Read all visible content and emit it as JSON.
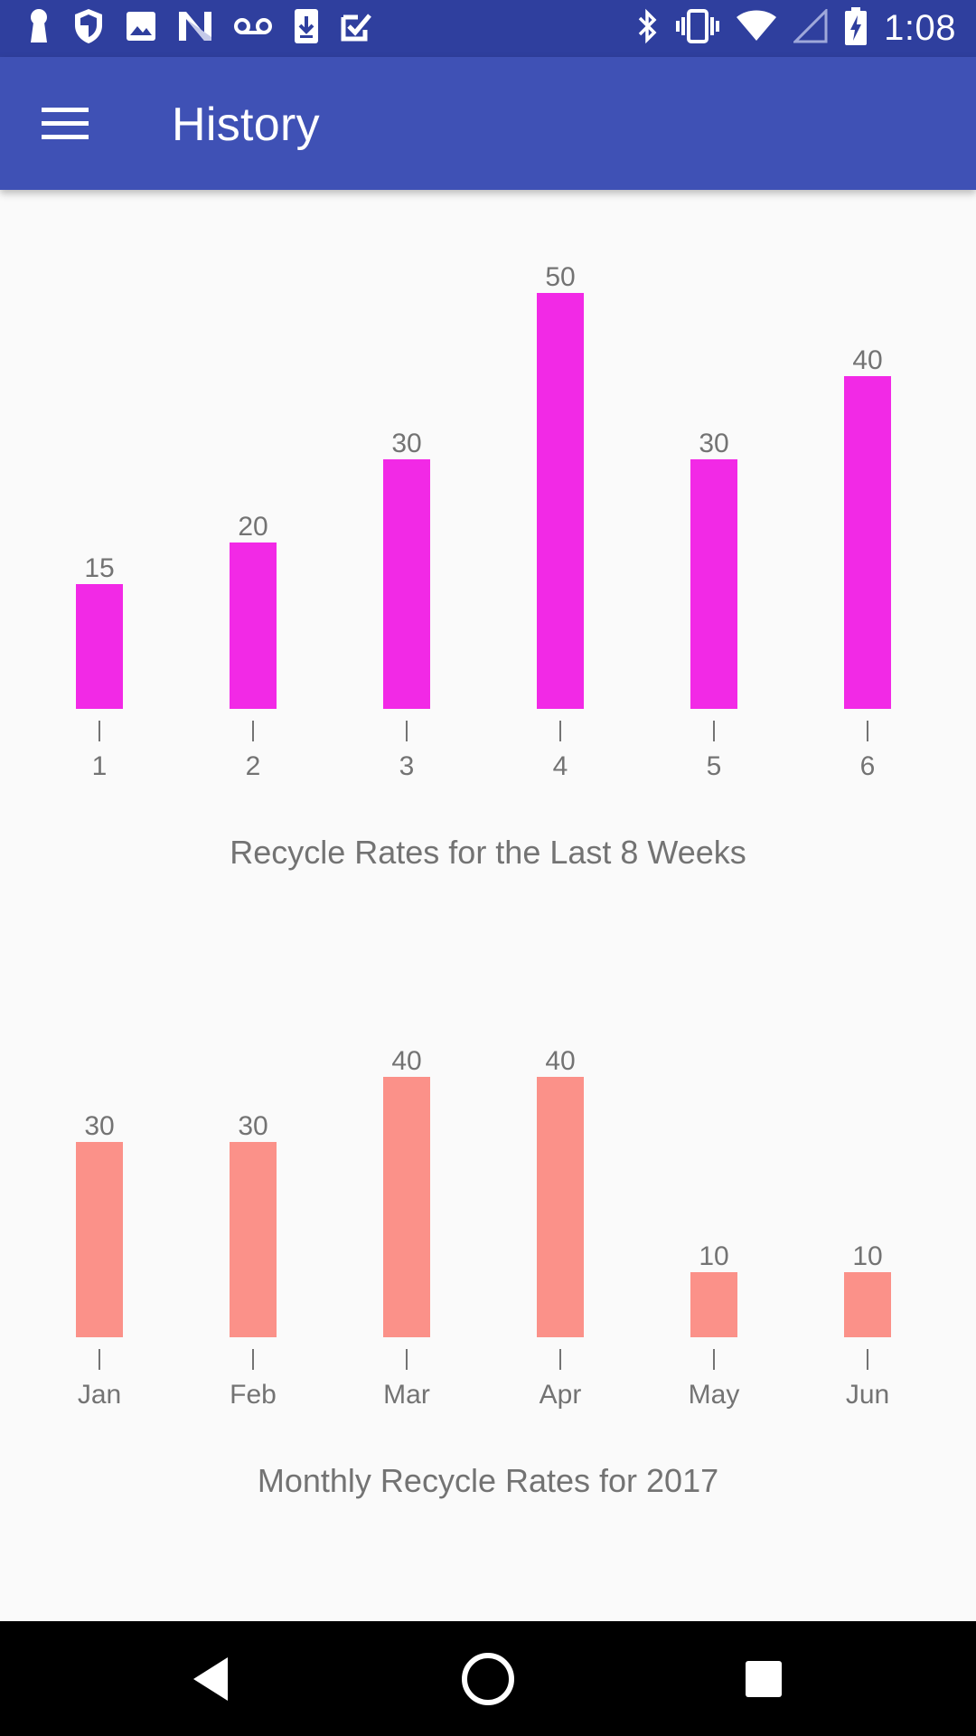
{
  "status_bar": {
    "time": "1:08",
    "left_icons": [
      "keyhole-icon",
      "shield-icon",
      "image-icon",
      "n-logo-icon",
      "voicemail-icon",
      "download-icon",
      "checkbox-icon"
    ],
    "right_icons": [
      "bluetooth-icon",
      "vibrate-icon",
      "wifi-icon",
      "signal-icon",
      "battery-icon"
    ]
  },
  "app_bar": {
    "title": "History",
    "menu_icon": "hamburger-menu-icon"
  },
  "colors": {
    "status_bar": "#2f3f9e",
    "app_bar": "#3f51b5",
    "weekly_bars": "#f229e6",
    "monthly_bars": "#fb9189",
    "label_text": "#737373"
  },
  "chart_data": [
    {
      "type": "bar",
      "title": "Recycle Rates for the Last 8 Weeks",
      "categories": [
        "1",
        "2",
        "3",
        "4",
        "5",
        "6"
      ],
      "values": [
        15,
        20,
        30,
        50,
        30,
        40
      ],
      "ylim": [
        0,
        50
      ],
      "grid": false,
      "legend": "none"
    },
    {
      "type": "bar",
      "title": "Monthly Recycle Rates for 2017",
      "categories": [
        "Jan",
        "Feb",
        "Mar",
        "Apr",
        "May",
        "Jun"
      ],
      "values": [
        30,
        30,
        40,
        40,
        10,
        10
      ],
      "ylim": [
        0,
        40
      ],
      "grid": false,
      "legend": "none"
    }
  ],
  "nav_bar": {
    "back_icon": "back-triangle-icon",
    "home_icon": "home-circle-icon",
    "recents_icon": "recents-square-icon"
  }
}
